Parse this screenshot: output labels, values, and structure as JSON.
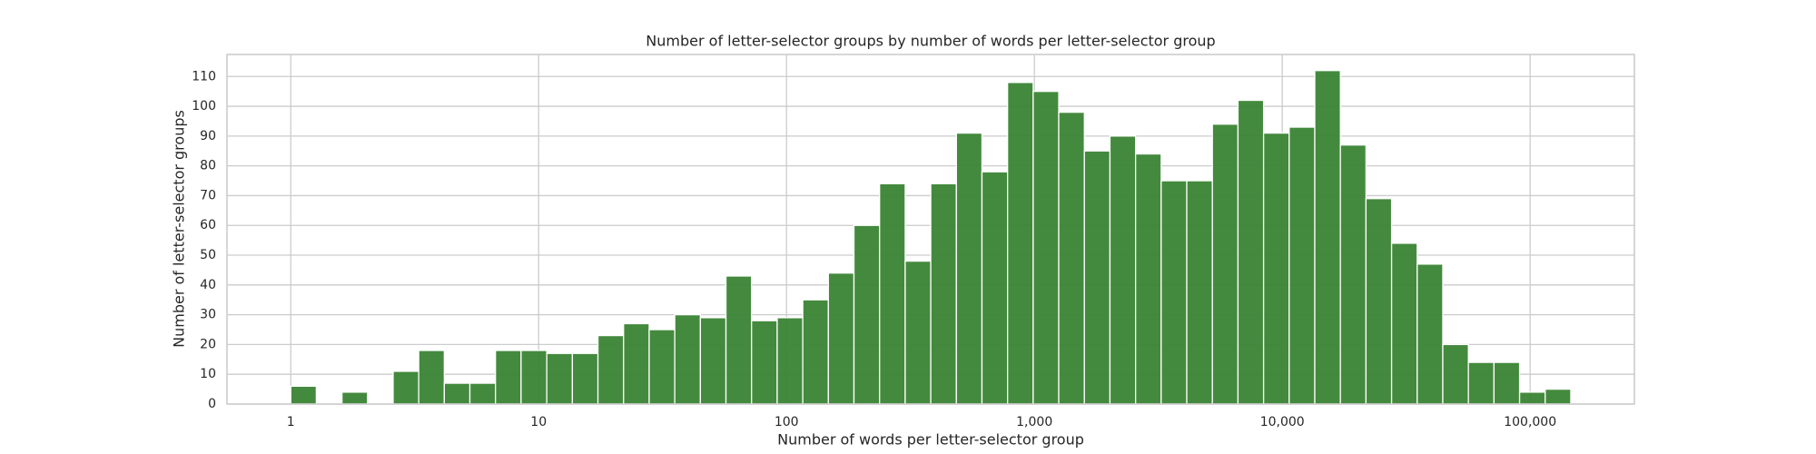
{
  "chart_data": {
    "type": "histogram",
    "title": "Number of letter-selector groups by number of words per letter-selector group",
    "xlabel": "Number of words per letter-selector group",
    "ylabel": "Number of letter-selector groups",
    "xscale": "log",
    "grid": true,
    "color": "#3a8434",
    "bins": [
      1,
      1.268,
      1.609,
      2.04,
      2.588,
      3.282,
      4.163,
      5.28,
      6.697,
      8.494,
      10.785,
      13.68,
      17.35,
      22.01,
      27.92,
      35.41,
      44.92,
      56.98,
      72.27,
      91.7,
      116.3,
      147.5,
      187.1,
      237.4,
      301.1,
      381.9,
      484.5,
      614.5,
      779.5,
      988.8,
      1254,
      1591,
      2018,
      2560,
      3247,
      4119,
      5225,
      6628,
      8407,
      10664,
      13527,
      17159,
      21766,
      27610,
      35023,
      44426,
      56354,
      71484,
      90675,
      115020,
      145881
    ],
    "counts": [
      6,
      0,
      4,
      0,
      11,
      18,
      7,
      7,
      18,
      18,
      17,
      17,
      23,
      27,
      25,
      30,
      29,
      43,
      28,
      29,
      35,
      44,
      60,
      74,
      48,
      74,
      91,
      78,
      108,
      105,
      98,
      85,
      90,
      84,
      75,
      75,
      94,
      102,
      91,
      93,
      112,
      87,
      69,
      54,
      47,
      20,
      14,
      14,
      4,
      5
    ],
    "xlim": [
      0.553,
      263400
    ],
    "ylim": [
      0,
      117.4
    ],
    "xticks": [
      1,
      10,
      100,
      {
        "value": 1000,
        "label": "1,000"
      },
      {
        "value": 10000,
        "label": "10,000"
      },
      {
        "value": 100000,
        "label": "100,000"
      }
    ],
    "yticks": [
      0,
      10,
      20,
      30,
      40,
      50,
      60,
      70,
      80,
      90,
      100,
      110
    ]
  }
}
